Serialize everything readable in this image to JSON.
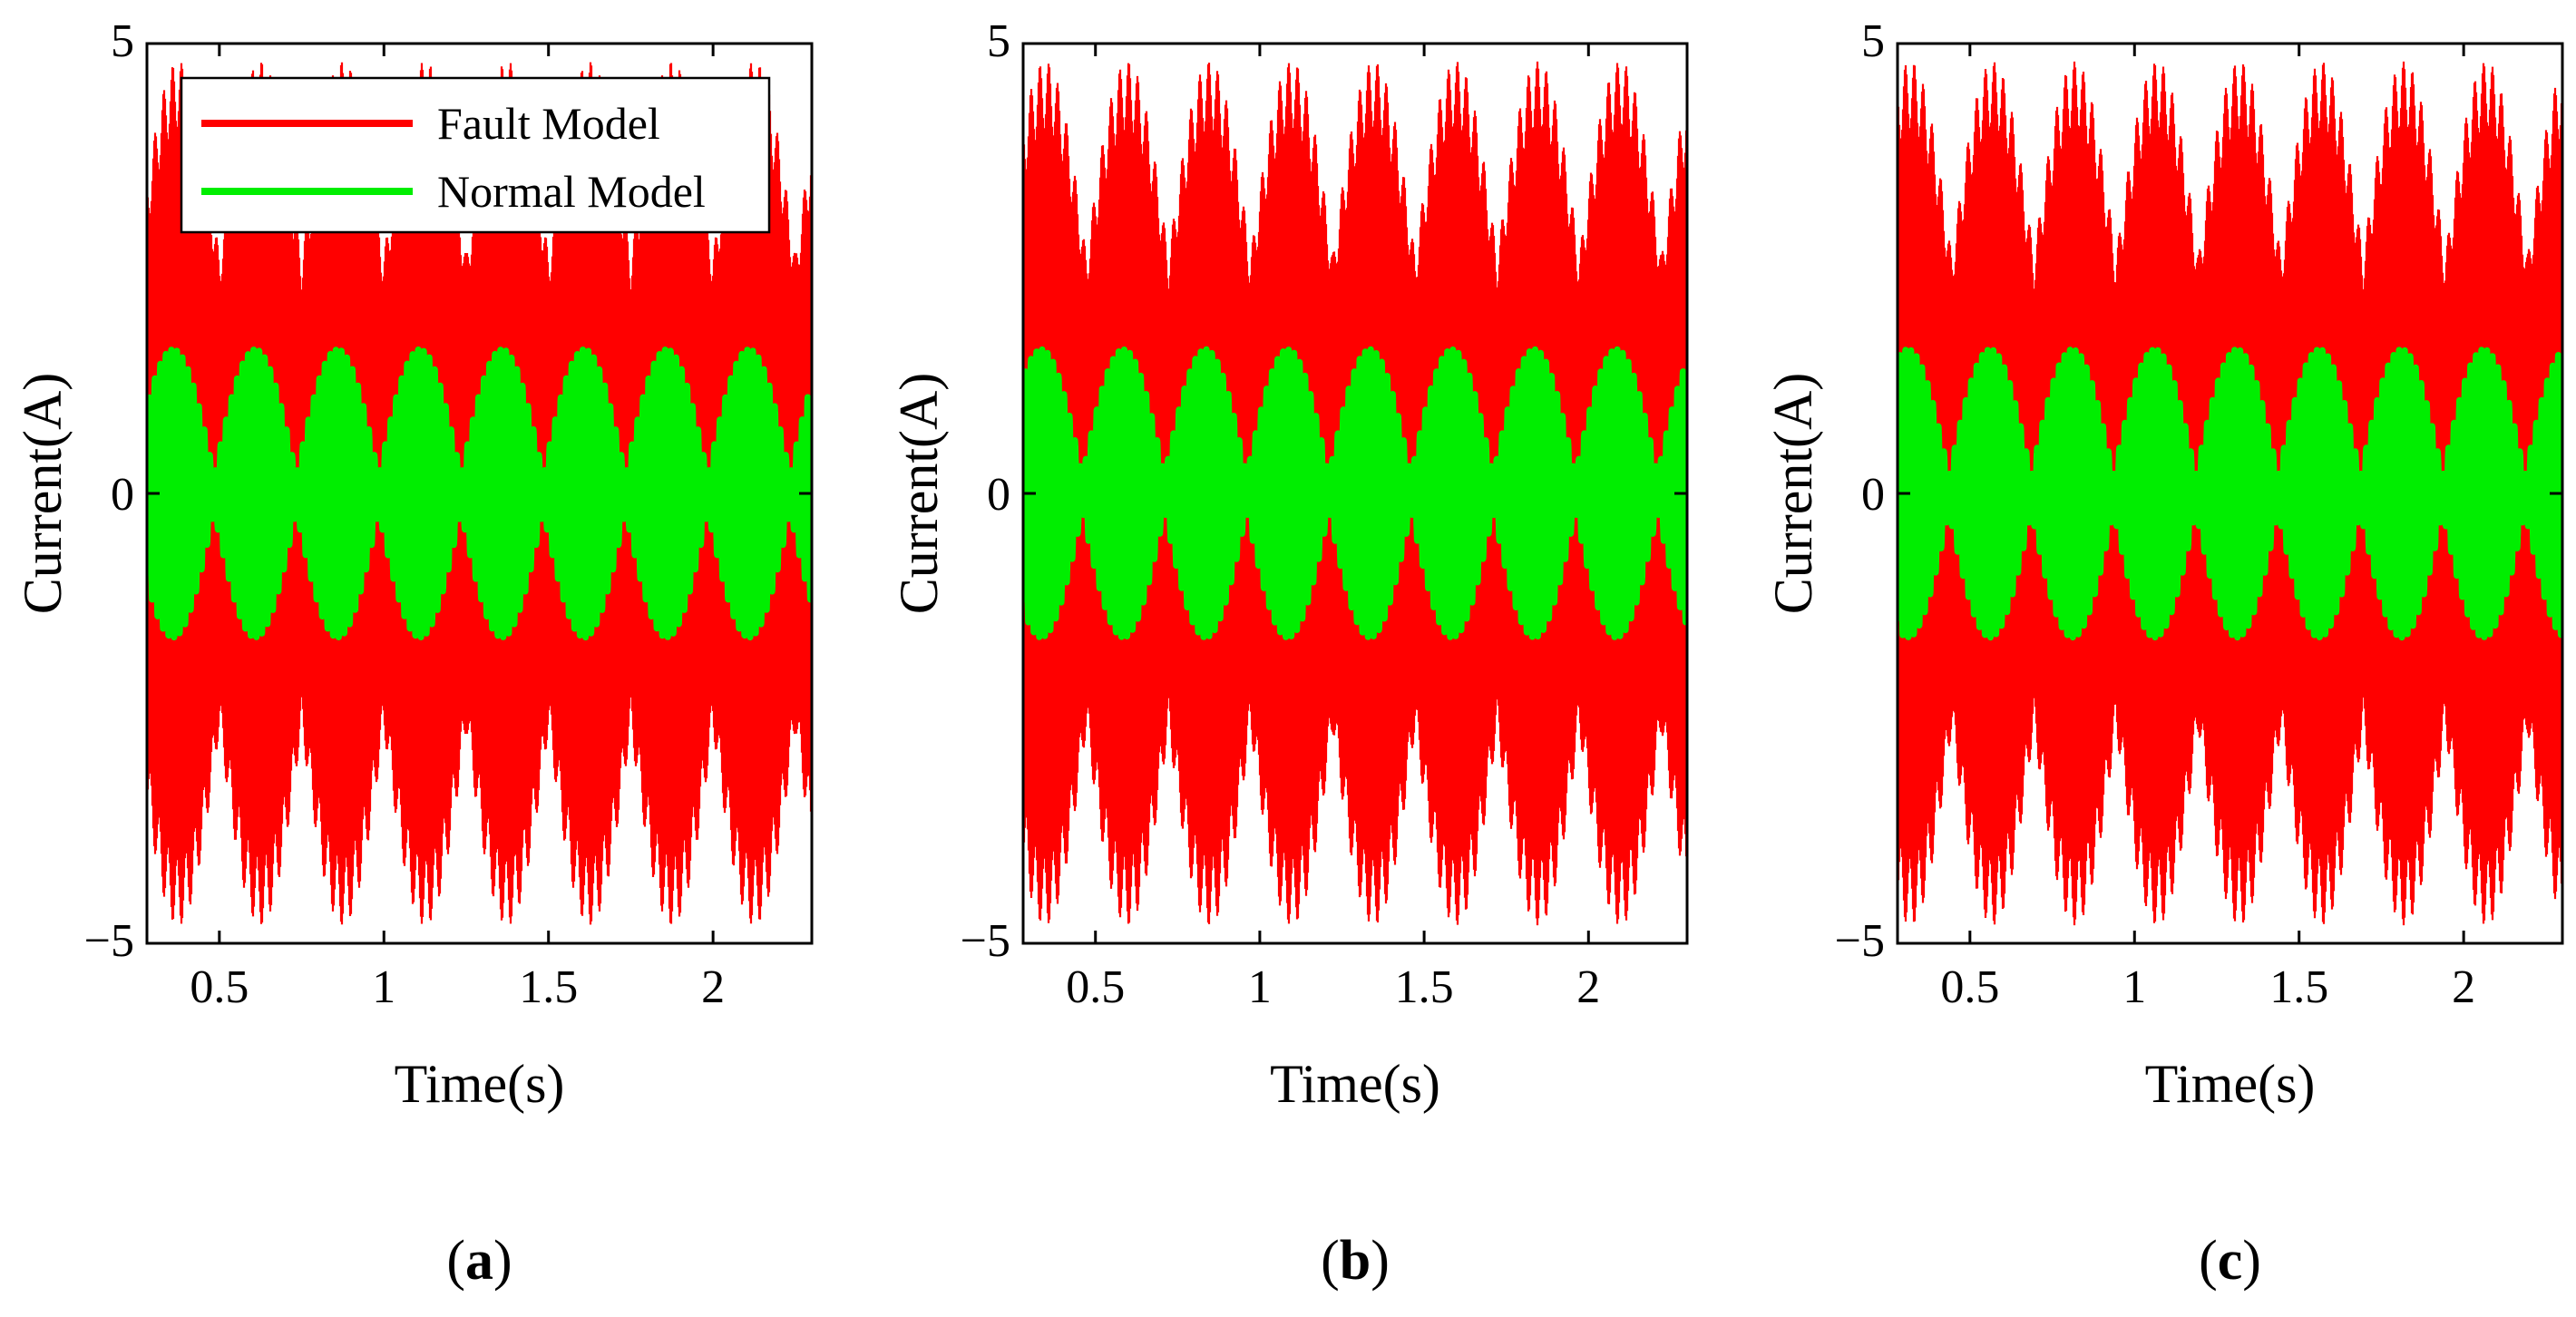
{
  "chart_data": [
    {
      "type": "line",
      "panel_label": "a",
      "xlabel": "Time(s)",
      "ylabel": "Current(A)",
      "xlim": [
        0.28,
        2.3
      ],
      "ylim": [
        -5,
        5
      ],
      "xticks": [
        0.5,
        1,
        1.5,
        2
      ],
      "xtick_labels": [
        "0.5",
        "1",
        "1.5",
        "2"
      ],
      "yticks": [
        -5,
        0,
        5
      ],
      "ytick_labels": [
        "−5",
        "0",
        "5"
      ],
      "legend": {
        "position": "top-left",
        "entries": [
          "Fault Model",
          "Normal Model"
        ]
      },
      "series": [
        {
          "name": "Fault Model",
          "color": "#ff0000",
          "amplitude": 4.8,
          "carrier_hz": 400,
          "envelope_hz": 4,
          "values_note": "amplitude-modulated current oscillating between -4.8 and 4.8"
        },
        {
          "name": "Normal Model",
          "color": "#00ee00",
          "amplitude": 1.6,
          "carrier_hz": 60,
          "envelope_hz": 4,
          "values_note": "beating current oscillating between -1.6 and 1.6"
        }
      ]
    },
    {
      "type": "line",
      "panel_label": "b",
      "xlabel": "Time(s)",
      "ylabel": "Current(A)",
      "xlim": [
        0.28,
        2.3
      ],
      "ylim": [
        -5,
        5
      ],
      "xticks": [
        0.5,
        1,
        1.5,
        2
      ],
      "xtick_labels": [
        "0.5",
        "1",
        "1.5",
        "2"
      ],
      "yticks": [
        -5,
        0,
        5
      ],
      "ytick_labels": [
        "−5",
        "0",
        "5"
      ],
      "series": [
        {
          "name": "Fault Model",
          "color": "#ff0000",
          "amplitude": 4.8,
          "carrier_hz": 400,
          "envelope_hz": 4
        },
        {
          "name": "Normal Model",
          "color": "#00ee00",
          "amplitude": 1.6,
          "carrier_hz": 60,
          "envelope_hz": 4
        }
      ]
    },
    {
      "type": "line",
      "panel_label": "c",
      "xlabel": "Time(s)",
      "ylabel": "Current(A)",
      "xlim": [
        0.28,
        2.3
      ],
      "ylim": [
        -5,
        5
      ],
      "xticks": [
        0.5,
        1,
        1.5,
        2
      ],
      "xtick_labels": [
        "0.5",
        "1",
        "1.5",
        "2"
      ],
      "yticks": [
        -5,
        0,
        5
      ],
      "ytick_labels": [
        "−5",
        "0",
        "5"
      ],
      "series": [
        {
          "name": "Fault Model",
          "color": "#ff0000",
          "amplitude": 4.8,
          "carrier_hz": 400,
          "envelope_hz": 4
        },
        {
          "name": "Normal Model",
          "color": "#00ee00",
          "amplitude": 1.6,
          "carrier_hz": 60,
          "envelope_hz": 4
        }
      ]
    }
  ]
}
